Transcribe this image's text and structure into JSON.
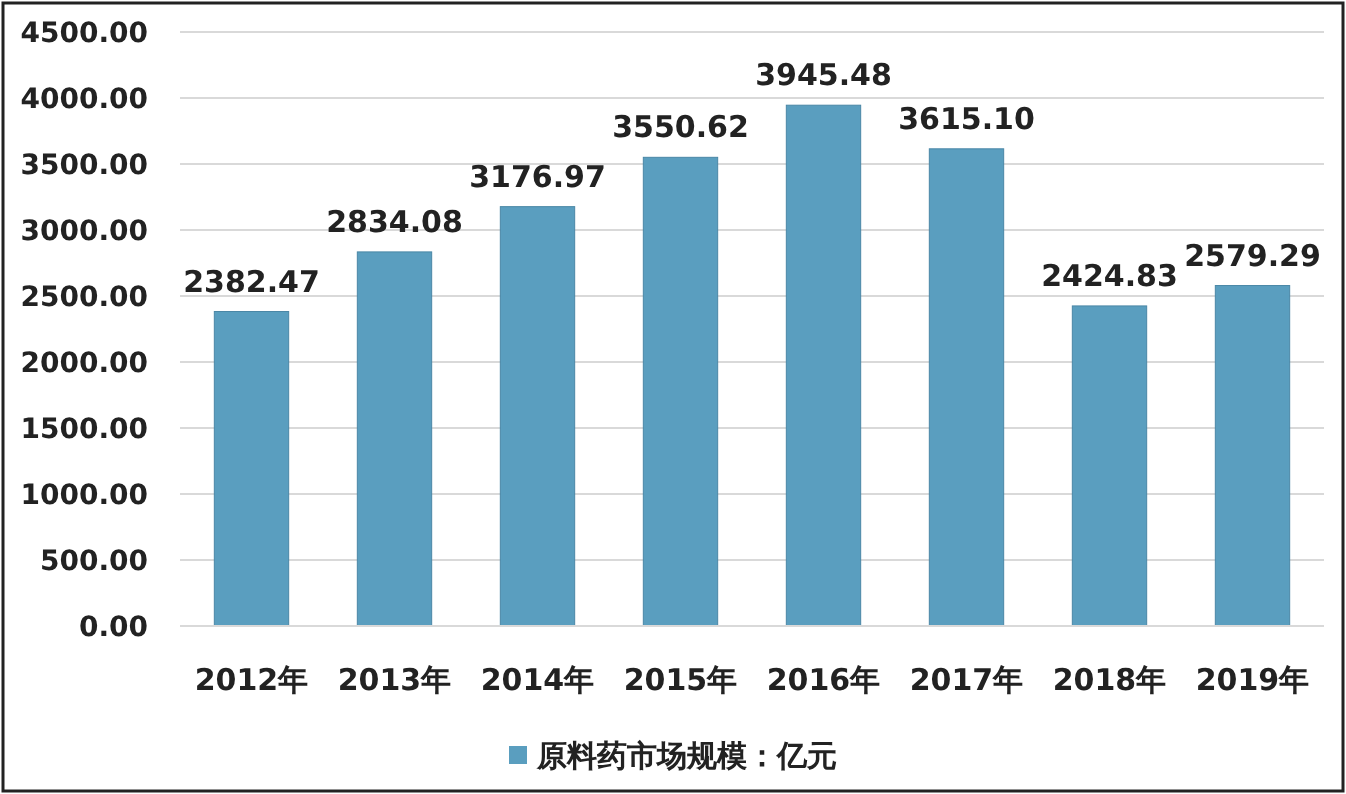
{
  "chart_data": {
    "type": "bar",
    "categories": [
      "2012年",
      "2013年",
      "2014年",
      "2015年",
      "2016年",
      "2017年",
      "2018年",
      "2019年"
    ],
    "series": [
      {
        "name": "原料药市场规模：亿元",
        "color": "#5a9ebf",
        "values": [
          2382.47,
          2834.08,
          3176.97,
          3550.62,
          3945.48,
          3615.1,
          2424.83,
          2579.29
        ],
        "value_labels": [
          "2382.47",
          "2834.08",
          "3176.97",
          "3550.62",
          "3945.48",
          "3615.10",
          "2424.83",
          "2579.29"
        ]
      }
    ],
    "ylim": [
      0,
      4500
    ],
    "yticks": [
      {
        "value": 0,
        "label": "0.00"
      },
      {
        "value": 500,
        "label": "500.00"
      },
      {
        "value": 1000,
        "label": "1000.00"
      },
      {
        "value": 1500,
        "label": "1500.00"
      },
      {
        "value": 2000,
        "label": "2000.00"
      },
      {
        "value": 2500,
        "label": "2500.00"
      },
      {
        "value": 3000,
        "label": "3000.00"
      },
      {
        "value": 3500,
        "label": "3500.00"
      },
      {
        "value": 4000,
        "label": "4000.00"
      },
      {
        "value": 4500,
        "label": "4500.00"
      }
    ],
    "grid": "y",
    "legend": "bottom"
  }
}
